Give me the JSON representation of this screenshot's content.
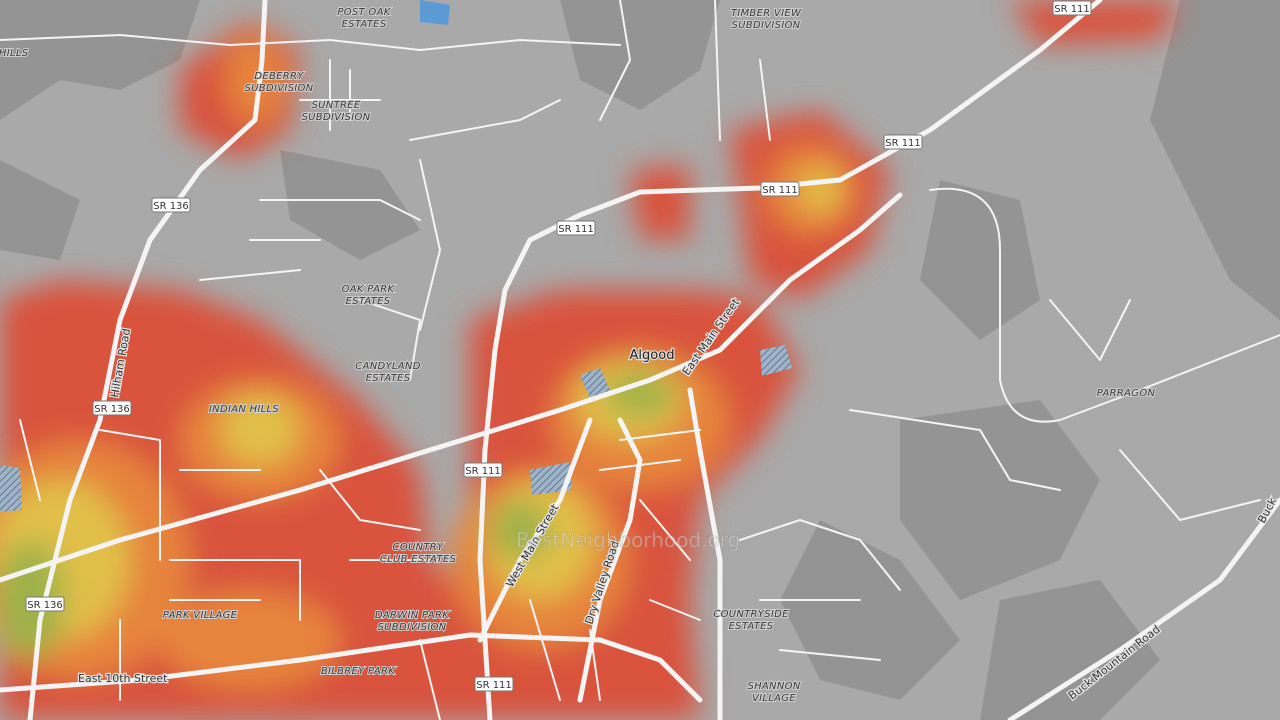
{
  "places": [
    [
      "POST OAK",
      "ESTATES"
    ],
    [
      "TIMBER VIEW",
      "SUBDIVISION"
    ],
    [
      "DEBERRY",
      "SUBDIVISION"
    ],
    [
      "SUNTREE",
      "SUBDIVISION"
    ],
    [
      "OAK PARK",
      "ESTATES"
    ],
    [
      "CANDYLAND",
      "ESTATES"
    ],
    [
      "INDIAN HILLS"
    ],
    [
      "COUNTRY",
      "CLUB ESTATES"
    ],
    [
      "PARK VILLAGE"
    ],
    [
      "DARWIN PARK",
      "SUBDIVISION"
    ],
    [
      "BILBREY PARK"
    ],
    [
      "COUNTRYSIDE",
      "ESTATES"
    ],
    [
      "SHANNON",
      "VILLAGE"
    ],
    [
      "PARRAGON"
    ],
    [
      "N HILLS"
    ]
  ],
  "town": "Algood",
  "streets": [
    "Hilham Road",
    "East Main Street",
    "West Main Street",
    "Dry Valley Road",
    "East 10th Street",
    "Buck Mountain Road",
    "Buck"
  ],
  "shields": [
    "SR 111",
    "SR 111",
    "SR 111",
    "SR 111",
    "SR 111",
    "SR 111",
    "SR 136",
    "SR 136",
    "SR 136"
  ],
  "watermark": "BestNeighborhood.org"
}
